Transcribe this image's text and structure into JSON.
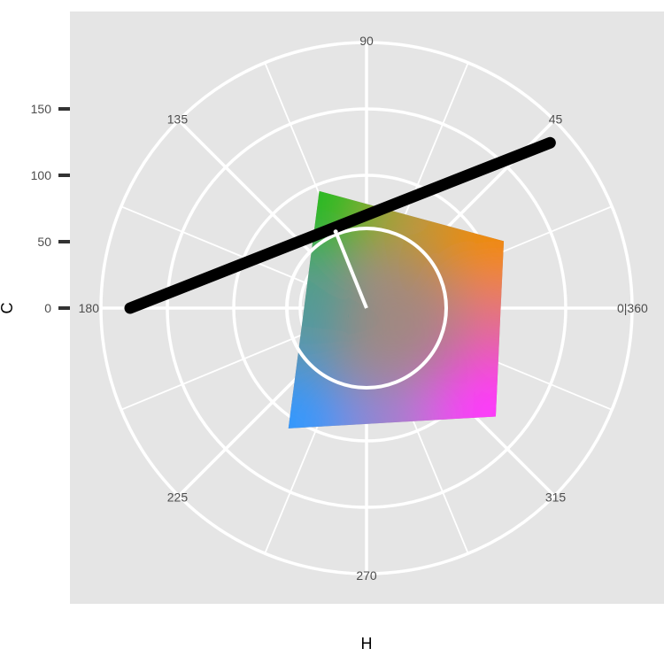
{
  "chart_data": {
    "type": "polar",
    "xlabel": "H",
    "ylabel": "C",
    "angle_axis": {
      "ticks": [
        {
          "value": 0,
          "label": "0|360"
        },
        {
          "value": 45,
          "label": "45"
        },
        {
          "value": 90,
          "label": "90"
        },
        {
          "value": 135,
          "label": "135"
        },
        {
          "value": 180,
          "label": "180"
        },
        {
          "value": 225,
          "label": "225"
        },
        {
          "value": 270,
          "label": "270"
        },
        {
          "value": 315,
          "label": "315"
        }
      ],
      "minor_gridline_every": 22.5
    },
    "radial_axis": {
      "ticks": [
        0,
        50,
        100,
        150
      ],
      "ylim": [
        0,
        180
      ],
      "grid_circles": [
        0,
        50,
        100,
        150,
        200
      ]
    },
    "gamut": {
      "corners": [
        {
          "name": "yellow-green",
          "h": 112,
          "c": 95,
          "color": "#22bb22"
        },
        {
          "name": "orange",
          "h": 26,
          "c": 115,
          "color": "#f28a00"
        },
        {
          "name": "magenta",
          "h": 320,
          "c": 127,
          "color": "#ff38ff"
        },
        {
          "name": "blue",
          "h": 237,
          "c": 108,
          "color": "#3399ff"
        }
      ],
      "center_color": "#a08880"
    },
    "selected_chroma": 60,
    "line": {
      "from": {
        "h": 180,
        "c": 178
      },
      "to": {
        "h": 42,
        "c": 186
      }
    },
    "indicator": {
      "h": 112,
      "c": 60
    }
  }
}
